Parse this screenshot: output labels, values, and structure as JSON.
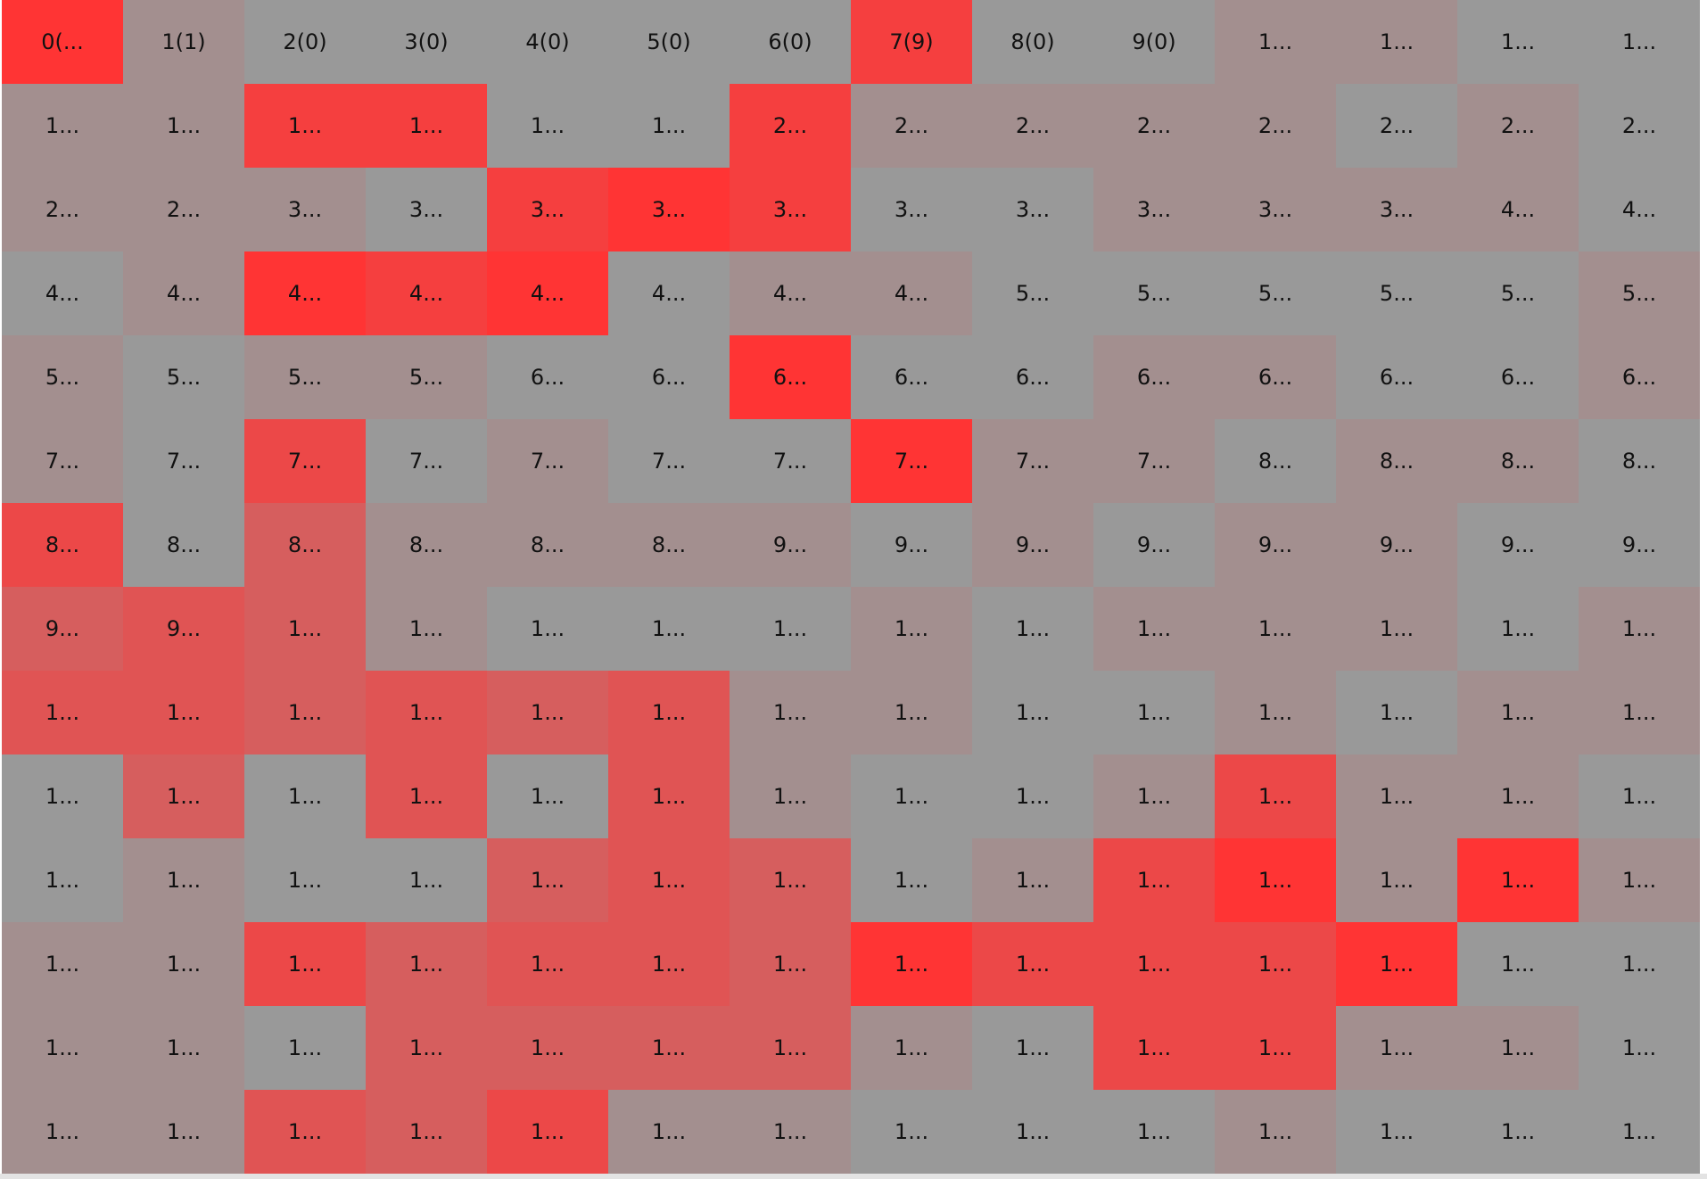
{
  "palette": {
    "0": "#999999",
    "1": "#a38f8f",
    "2": "#d65e5e",
    "3": "#e05454",
    "4": "#ec4848",
    "5": "#f53f3f",
    "6": "#ff3434"
  },
  "grid": {
    "columns": 14,
    "rows": [
      [
        [
          "0(...",
          6
        ],
        [
          "1(1)",
          1
        ],
        [
          "2(0)",
          0
        ],
        [
          "3(0)",
          0
        ],
        [
          "4(0)",
          0
        ],
        [
          "5(0)",
          0
        ],
        [
          "6(0)",
          0
        ],
        [
          "7(9)",
          5
        ],
        [
          "8(0)",
          0
        ],
        [
          "9(0)",
          0
        ],
        [
          "1...",
          1
        ],
        [
          "1...",
          1
        ],
        [
          "1...",
          0
        ],
        [
          "1...",
          0
        ]
      ],
      [
        [
          "1...",
          1
        ],
        [
          "1...",
          1
        ],
        [
          "1...",
          5
        ],
        [
          "1...",
          5
        ],
        [
          "1...",
          0
        ],
        [
          "1...",
          0
        ],
        [
          "2...",
          5
        ],
        [
          "2...",
          1
        ],
        [
          "2...",
          1
        ],
        [
          "2...",
          1
        ],
        [
          "2...",
          1
        ],
        [
          "2...",
          0
        ],
        [
          "2...",
          1
        ],
        [
          "2...",
          0
        ]
      ],
      [
        [
          "2...",
          1
        ],
        [
          "2...",
          1
        ],
        [
          "3...",
          1
        ],
        [
          "3...",
          0
        ],
        [
          "3...",
          5
        ],
        [
          "3...",
          6
        ],
        [
          "3...",
          5
        ],
        [
          "3...",
          0
        ],
        [
          "3...",
          0
        ],
        [
          "3...",
          1
        ],
        [
          "3...",
          1
        ],
        [
          "3...",
          1
        ],
        [
          "4...",
          1
        ],
        [
          "4...",
          0
        ]
      ],
      [
        [
          "4...",
          0
        ],
        [
          "4...",
          1
        ],
        [
          "4...",
          6
        ],
        [
          "4...",
          5
        ],
        [
          "4...",
          6
        ],
        [
          "4...",
          0
        ],
        [
          "4...",
          1
        ],
        [
          "4...",
          1
        ],
        [
          "5...",
          0
        ],
        [
          "5...",
          0
        ],
        [
          "5...",
          0
        ],
        [
          "5...",
          0
        ],
        [
          "5...",
          0
        ],
        [
          "5...",
          1
        ]
      ],
      [
        [
          "5...",
          1
        ],
        [
          "5...",
          0
        ],
        [
          "5...",
          1
        ],
        [
          "5...",
          1
        ],
        [
          "6...",
          0
        ],
        [
          "6...",
          0
        ],
        [
          "6...",
          6
        ],
        [
          "6...",
          0
        ],
        [
          "6...",
          0
        ],
        [
          "6...",
          1
        ],
        [
          "6...",
          1
        ],
        [
          "6...",
          0
        ],
        [
          "6...",
          0
        ],
        [
          "6...",
          1
        ]
      ],
      [
        [
          "7...",
          1
        ],
        [
          "7...",
          0
        ],
        [
          "7...",
          4
        ],
        [
          "7...",
          0
        ],
        [
          "7...",
          1
        ],
        [
          "7...",
          0
        ],
        [
          "7...",
          0
        ],
        [
          "7...",
          6
        ],
        [
          "7...",
          1
        ],
        [
          "7...",
          1
        ],
        [
          "8...",
          0
        ],
        [
          "8...",
          1
        ],
        [
          "8...",
          1
        ],
        [
          "8...",
          0
        ]
      ],
      [
        [
          "8...",
          4
        ],
        [
          "8...",
          0
        ],
        [
          "8...",
          2
        ],
        [
          "8...",
          1
        ],
        [
          "8...",
          1
        ],
        [
          "8...",
          1
        ],
        [
          "9...",
          1
        ],
        [
          "9...",
          0
        ],
        [
          "9...",
          1
        ],
        [
          "9...",
          0
        ],
        [
          "9...",
          1
        ],
        [
          "9...",
          1
        ],
        [
          "9...",
          0
        ],
        [
          "9...",
          0
        ]
      ],
      [
        [
          "9...",
          2
        ],
        [
          "9...",
          3
        ],
        [
          "1...",
          2
        ],
        [
          "1...",
          1
        ],
        [
          "1...",
          0
        ],
        [
          "1...",
          0
        ],
        [
          "1...",
          0
        ],
        [
          "1...",
          1
        ],
        [
          "1...",
          0
        ],
        [
          "1...",
          1
        ],
        [
          "1...",
          1
        ],
        [
          "1...",
          1
        ],
        [
          "1...",
          0
        ],
        [
          "1...",
          1
        ]
      ],
      [
        [
          "1...",
          3
        ],
        [
          "1...",
          3
        ],
        [
          "1...",
          2
        ],
        [
          "1...",
          3
        ],
        [
          "1...",
          2
        ],
        [
          "1...",
          3
        ],
        [
          "1...",
          1
        ],
        [
          "1...",
          1
        ],
        [
          "1...",
          0
        ],
        [
          "1...",
          0
        ],
        [
          "1...",
          1
        ],
        [
          "1...",
          0
        ],
        [
          "1...",
          1
        ],
        [
          "1...",
          1
        ]
      ],
      [
        [
          "1...",
          0
        ],
        [
          "1...",
          2
        ],
        [
          "1...",
          0
        ],
        [
          "1...",
          3
        ],
        [
          "1...",
          0
        ],
        [
          "1...",
          3
        ],
        [
          "1...",
          1
        ],
        [
          "1...",
          0
        ],
        [
          "1...",
          0
        ],
        [
          "1...",
          1
        ],
        [
          "1...",
          4
        ],
        [
          "1...",
          1
        ],
        [
          "1...",
          1
        ],
        [
          "1...",
          0
        ]
      ],
      [
        [
          "1...",
          0
        ],
        [
          "1...",
          1
        ],
        [
          "1...",
          0
        ],
        [
          "1...",
          0
        ],
        [
          "1...",
          2
        ],
        [
          "1...",
          3
        ],
        [
          "1...",
          2
        ],
        [
          "1...",
          0
        ],
        [
          "1...",
          1
        ],
        [
          "1...",
          4
        ],
        [
          "1...",
          6
        ],
        [
          "1...",
          1
        ],
        [
          "1...",
          6
        ],
        [
          "1...",
          1
        ]
      ],
      [
        [
          "1...",
          1
        ],
        [
          "1...",
          1
        ],
        [
          "1...",
          4
        ],
        [
          "1...",
          2
        ],
        [
          "1...",
          3
        ],
        [
          "1...",
          3
        ],
        [
          "1...",
          2
        ],
        [
          "1...",
          6
        ],
        [
          "1...",
          4
        ],
        [
          "1...",
          4
        ],
        [
          "1...",
          4
        ],
        [
          "1...",
          6
        ],
        [
          "1...",
          0
        ],
        [
          "1...",
          0
        ]
      ],
      [
        [
          "1...",
          1
        ],
        [
          "1...",
          1
        ],
        [
          "1...",
          0
        ],
        [
          "1...",
          2
        ],
        [
          "1...",
          2
        ],
        [
          "1...",
          2
        ],
        [
          "1...",
          2
        ],
        [
          "1...",
          1
        ],
        [
          "1...",
          0
        ],
        [
          "1...",
          4
        ],
        [
          "1...",
          4
        ],
        [
          "1...",
          1
        ],
        [
          "1...",
          1
        ],
        [
          "1...",
          0
        ]
      ],
      [
        [
          "1...",
          1
        ],
        [
          "1...",
          1
        ],
        [
          "1...",
          3
        ],
        [
          "1...",
          2
        ],
        [
          "1...",
          4
        ],
        [
          "1...",
          1
        ],
        [
          "1...",
          1
        ],
        [
          "1...",
          0
        ],
        [
          "1...",
          0
        ],
        [
          "1...",
          0
        ],
        [
          "1...",
          1
        ],
        [
          "1...",
          0
        ],
        [
          "1...",
          0
        ],
        [
          "1...",
          0
        ]
      ]
    ]
  }
}
